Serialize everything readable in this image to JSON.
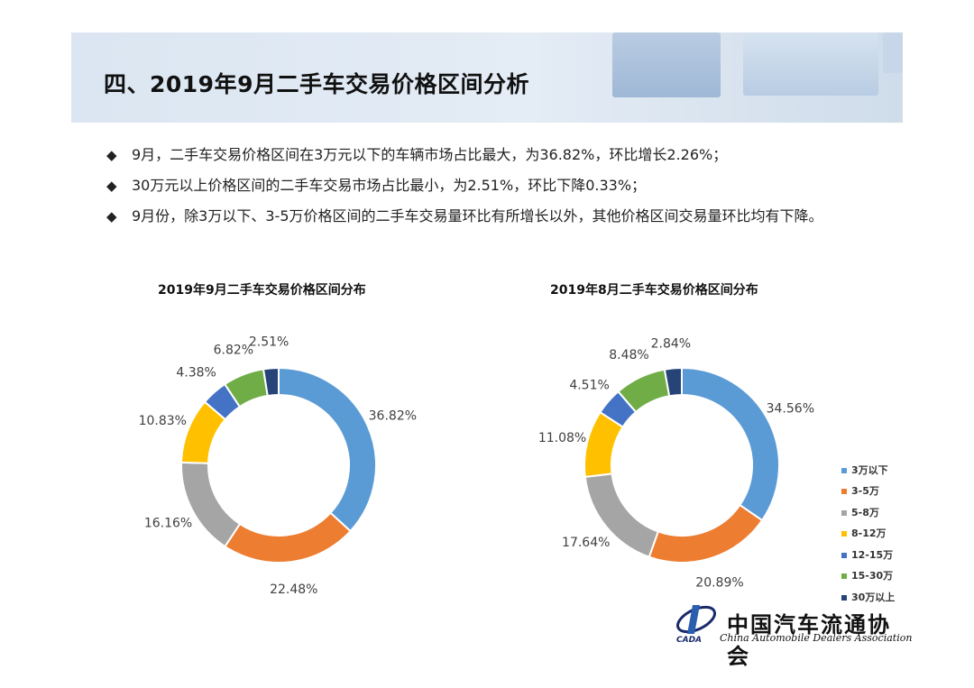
{
  "header": {
    "title": "四、2019年9月二手车交易价格区间分析"
  },
  "bullets": [
    "9月，二手车交易价格区间在3万元以下的车辆市场占比最大，为36.82%，环比增长2.26%；",
    "30万元以上价格区间的二手车交易市场占比最小，为2.51%，环比下降0.33%；",
    "9月份，除3万以下、3-5万价格区间的二手车交易量环比有所增长以外，其他价格区间交易量环比均有下降。"
  ],
  "bullet_mark": "◆",
  "colors": [
    "#5b9bd5",
    "#ed7d31",
    "#a5a5a5",
    "#ffc000",
    "#4472c4",
    "#70ad47",
    "#264478"
  ],
  "legend": [
    "3万以下",
    "3-5万",
    "5-8万",
    "8-12万",
    "12-15万",
    "15-30万",
    "30万以上"
  ],
  "chart_data": [
    {
      "type": "pie",
      "title": "2019年9月二手车交易价格区间分布",
      "categories": [
        "3万以下",
        "3-5万",
        "5-8万",
        "8-12万",
        "12-15万",
        "15-30万",
        "30万以上"
      ],
      "values": [
        36.82,
        22.48,
        16.16,
        10.83,
        4.38,
        6.82,
        2.51
      ],
      "labels": [
        "36.82%",
        "22.48%",
        "16.16%",
        "10.83%",
        "4.38%",
        "6.82%",
        "2.51%"
      ],
      "style": "donut"
    },
    {
      "type": "pie",
      "title": "2019年8月二手车交易价格区间分布",
      "categories": [
        "3万以下",
        "3-5万",
        "5-8万",
        "8-12万",
        "12-15万",
        "15-30万",
        "30万以上"
      ],
      "values": [
        34.56,
        20.89,
        17.64,
        11.08,
        4.51,
        8.48,
        2.84
      ],
      "labels": [
        "34.56%",
        "20.89%",
        "17.64%",
        "11.08%",
        "4.51%",
        "8.48%",
        "2.84%"
      ],
      "style": "donut",
      "legend_position": "right"
    }
  ],
  "logo": {
    "name": "中国汽车流通协会",
    "subtitle": "China Automobile Dealers Association",
    "mark": "CADA"
  }
}
